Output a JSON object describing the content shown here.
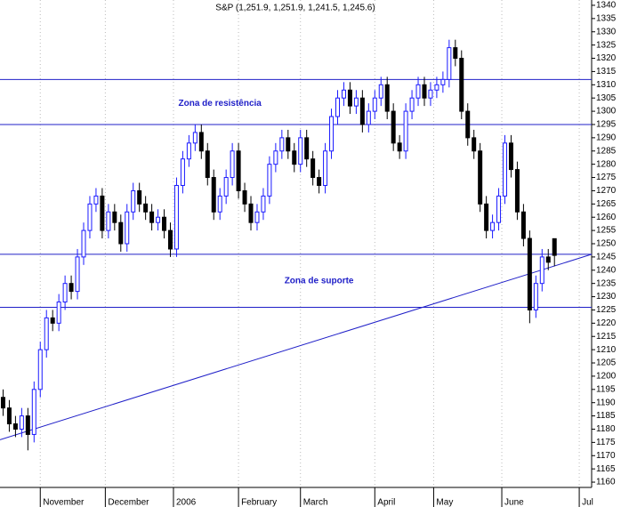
{
  "chart_data": {
    "type": "candlestick",
    "title": "S&P (1,251.9, 1,251.9, 1,241.5, 1,245.6)",
    "x": [
      0,
      2,
      4,
      6,
      8,
      10,
      12,
      14,
      16,
      18,
      20,
      22,
      24,
      26,
      28,
      30,
      32,
      34,
      36,
      38,
      40,
      42,
      44,
      46,
      48,
      50,
      52,
      54,
      56,
      58,
      60,
      62,
      64,
      66,
      68,
      70,
      72,
      74,
      76,
      78,
      80,
      82,
      84,
      86,
      88,
      90,
      92,
      94,
      96,
      98,
      100,
      102,
      104,
      106,
      108,
      110,
      112,
      114,
      116,
      118,
      120,
      122,
      124,
      126,
      128,
      130,
      132,
      134,
      136,
      138,
      140,
      142,
      144,
      146,
      148,
      150,
      152,
      154,
      156,
      158,
      160,
      162,
      164,
      166,
      168,
      170,
      172,
      174,
      176,
      178
    ],
    "open": [
      1192,
      1188,
      1182,
      1180,
      1185,
      1178,
      1195,
      1210,
      1222,
      1220,
      1228,
      1235,
      1232,
      1245,
      1255,
      1265,
      1268,
      1255,
      1262,
      1258,
      1250,
      1262,
      1270,
      1265,
      1262,
      1258,
      1260,
      1255,
      1248,
      1272,
      1282,
      1288,
      1292,
      1285,
      1275,
      1262,
      1268,
      1275,
      1285,
      1270,
      1265,
      1258,
      1262,
      1268,
      1280,
      1285,
      1290,
      1285,
      1280,
      1290,
      1282,
      1275,
      1272,
      1285,
      1298,
      1305,
      1308,
      1302,
      1305,
      1295,
      1300,
      1305,
      1310,
      1300,
      1288,
      1285,
      1300,
      1305,
      1310,
      1305,
      1308,
      1310,
      1312,
      1324,
      1320,
      1300,
      1290,
      1285,
      1265,
      1255,
      1258,
      1268,
      1288,
      1278,
      1262,
      1252,
      1225,
      1235,
      1245,
      1251.9
    ],
    "high": [
      1195,
      1191,
      1185,
      1188,
      1188,
      1198,
      1213,
      1225,
      1225,
      1231,
      1238,
      1238,
      1248,
      1258,
      1268,
      1271,
      1271,
      1265,
      1265,
      1261,
      1265,
      1273,
      1273,
      1268,
      1265,
      1263,
      1263,
      1258,
      1275,
      1285,
      1291,
      1295,
      1295,
      1288,
      1278,
      1271,
      1278,
      1288,
      1288,
      1273,
      1268,
      1265,
      1271,
      1283,
      1288,
      1293,
      1293,
      1288,
      1293,
      1293,
      1285,
      1278,
      1288,
      1301,
      1308,
      1311,
      1311,
      1308,
      1308,
      1303,
      1308,
      1313,
      1313,
      1303,
      1291,
      1303,
      1308,
      1313,
      1313,
      1311,
      1313,
      1315,
      1327,
      1327,
      1323,
      1303,
      1293,
      1288,
      1268,
      1261,
      1271,
      1291,
      1291,
      1281,
      1265,
      1255,
      1238,
      1248,
      1248,
      1251.9
    ],
    "low": [
      1185,
      1179,
      1177,
      1177,
      1172,
      1175,
      1192,
      1207,
      1217,
      1217,
      1225,
      1229,
      1229,
      1242,
      1252,
      1262,
      1252,
      1252,
      1255,
      1247,
      1247,
      1259,
      1262,
      1259,
      1255,
      1255,
      1252,
      1245,
      1245,
      1269,
      1279,
      1285,
      1282,
      1272,
      1259,
      1259,
      1265,
      1272,
      1267,
      1262,
      1255,
      1255,
      1259,
      1265,
      1277,
      1282,
      1282,
      1277,
      1277,
      1279,
      1272,
      1269,
      1269,
      1282,
      1295,
      1302,
      1299,
      1299,
      1292,
      1292,
      1297,
      1302,
      1297,
      1285,
      1282,
      1282,
      1297,
      1302,
      1302,
      1302,
      1305,
      1307,
      1309,
      1317,
      1297,
      1287,
      1282,
      1262,
      1252,
      1252,
      1255,
      1265,
      1275,
      1259,
      1249,
      1220,
      1222,
      1232,
      1240,
      1241.5
    ],
    "close": [
      1188,
      1182,
      1180,
      1185,
      1178,
      1195,
      1210,
      1222,
      1220,
      1228,
      1235,
      1232,
      1245,
      1255,
      1265,
      1268,
      1255,
      1262,
      1258,
      1250,
      1262,
      1270,
      1265,
      1262,
      1258,
      1260,
      1255,
      1248,
      1272,
      1282,
      1288,
      1292,
      1285,
      1275,
      1262,
      1268,
      1275,
      1285,
      1270,
      1265,
      1258,
      1262,
      1268,
      1280,
      1285,
      1290,
      1285,
      1280,
      1290,
      1282,
      1275,
      1272,
      1285,
      1298,
      1305,
      1308,
      1302,
      1305,
      1295,
      1300,
      1305,
      1310,
      1300,
      1288,
      1285,
      1300,
      1305,
      1310,
      1305,
      1308,
      1310,
      1312,
      1324,
      1320,
      1300,
      1290,
      1285,
      1265,
      1255,
      1258,
      1268,
      1288,
      1278,
      1262,
      1252,
      1225,
      1235,
      1245,
      1243,
      1245.6
    ],
    "up_color": "#1a1aff",
    "down_color": "#000000",
    "xlim": [
      -1,
      190
    ],
    "xticks": [
      {
        "value": 12,
        "label": "November"
      },
      {
        "value": 33,
        "label": "December"
      },
      {
        "value": 55,
        "label": "2006"
      },
      {
        "value": 76,
        "label": "February"
      },
      {
        "value": 96,
        "label": "March"
      },
      {
        "value": 120,
        "label": "April"
      },
      {
        "value": 139,
        "label": "May"
      },
      {
        "value": 161,
        "label": "June"
      },
      {
        "value": 186,
        "label": "Jul"
      }
    ],
    "ylim": [
      1158,
      1342
    ],
    "yticks": [
      1160,
      1165,
      1170,
      1175,
      1180,
      1185,
      1190,
      1195,
      1200,
      1205,
      1210,
      1215,
      1220,
      1225,
      1230,
      1235,
      1240,
      1245,
      1250,
      1255,
      1260,
      1265,
      1270,
      1275,
      1280,
      1285,
      1290,
      1295,
      1300,
      1305,
      1310,
      1315,
      1320,
      1325,
      1330,
      1335,
      1340
    ],
    "hlines": [
      1312,
      1295,
      1246,
      1226
    ],
    "trendline": {
      "x": [
        -1,
        190
      ],
      "y": [
        1176,
        1246
      ]
    },
    "line_color": "#2020c8",
    "annotations": [
      {
        "text": "Zona de resistência",
        "x": 70,
        "y": 1303
      },
      {
        "text": "Zona de suporte",
        "x": 102,
        "y": 1236
      }
    ]
  }
}
